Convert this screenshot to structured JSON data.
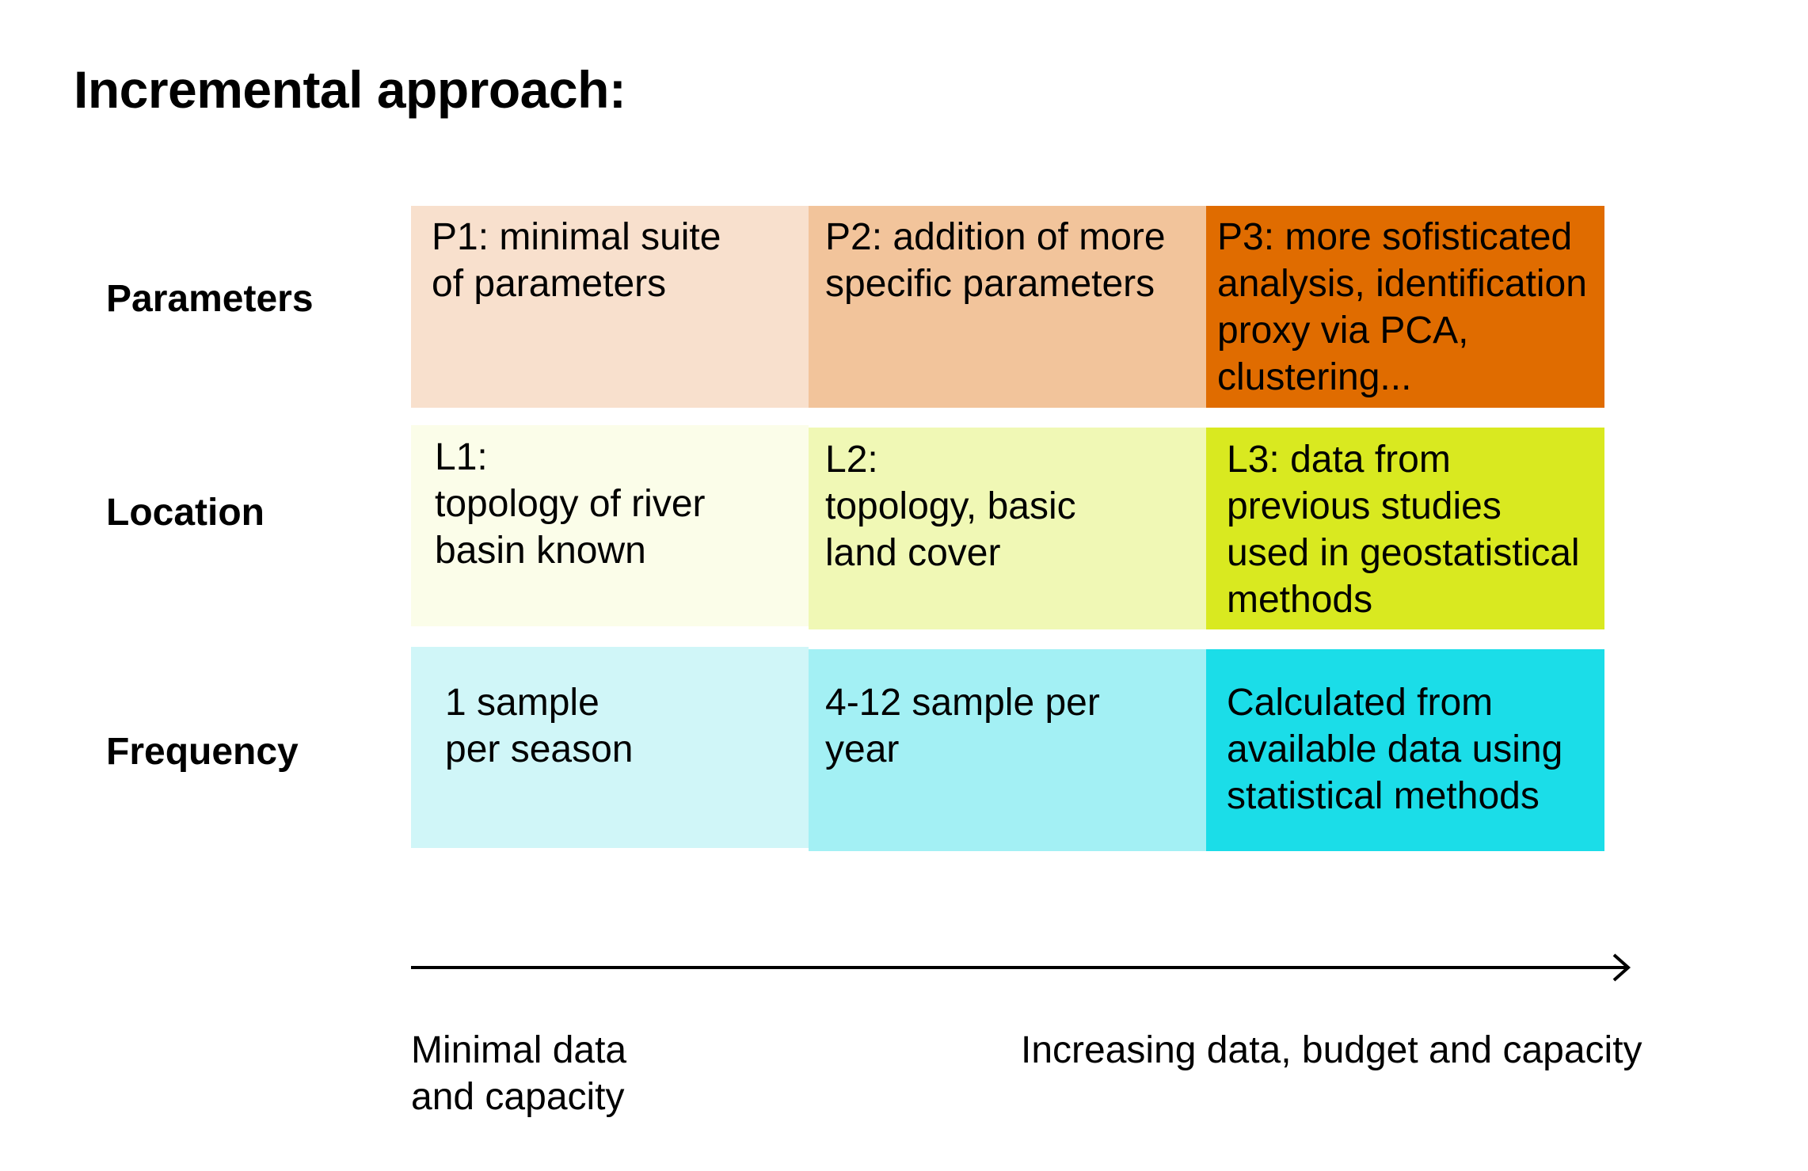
{
  "title": "Incremental approach:",
  "rows": [
    {
      "label": "Parameters",
      "cells": [
        {
          "text": "P1: minimal suite\nof parameters",
          "color": "#F8E0CD"
        },
        {
          "text": "P2: addition of more\nspecific parameters",
          "color": "#F2C49B"
        },
        {
          "text": "P3: more sofisticated\nanalysis, identification\nproxy via PCA,\nclustering...",
          "color": "#E06C00"
        }
      ]
    },
    {
      "label": "Location",
      "cells": [
        {
          "text": "L1:\ntopology of river\nbasin known",
          "color": "#FBFDE9"
        },
        {
          "text": "L2:\ntopology, basic\nland cover",
          "color": "#F0F8B5"
        },
        {
          "text": "L3: data from\nprevious studies\nused in geostatistical\nmethods",
          "color": "#D9E920"
        }
      ]
    },
    {
      "label": "Frequency",
      "cells": [
        {
          "text": "1 sample\nper season",
          "color": "#D0F6F8"
        },
        {
          "text": "4-12 sample per\nyear",
          "color": "#A3F0F4"
        },
        {
          "text": "Calculated from\navailable data using\nstatistical methods",
          "color": "#1BDDE8"
        }
      ]
    }
  ],
  "axis": {
    "start_label": "Minimal data\nand capacity",
    "end_label": "Increasing data, budget and capacity"
  }
}
